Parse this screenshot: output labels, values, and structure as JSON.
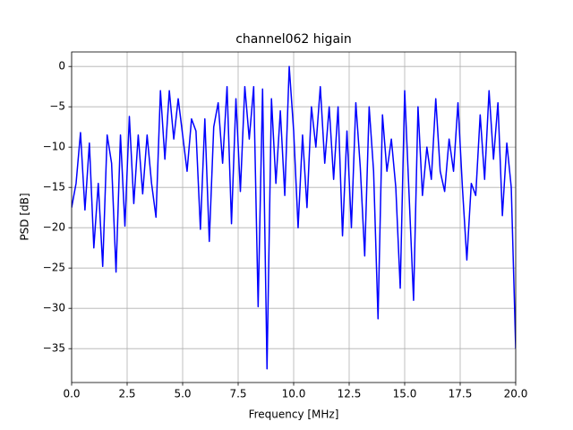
{
  "chart_data": {
    "type": "line",
    "title": "channel062 higain",
    "xlabel": "Frequency [MHz]",
    "ylabel": "PSD [dB]",
    "color": "blue",
    "grid": true,
    "xlim": [
      0,
      20
    ],
    "ylim": [
      -39.2,
      1.8
    ],
    "xticks": [
      {
        "value": 0,
        "label": "0.0"
      },
      2.5,
      {
        "value": 5,
        "label": "5.0"
      },
      7.5,
      {
        "value": 10,
        "label": "10.0"
      },
      12.5,
      {
        "value": 15,
        "label": "15.0"
      },
      17.5,
      {
        "value": 20,
        "label": "20.0"
      }
    ],
    "yticks": [
      0,
      {
        "value": -5,
        "label": "−5"
      },
      {
        "value": -10,
        "label": "−10"
      },
      {
        "value": -15,
        "label": "−15"
      },
      {
        "value": -20,
        "label": "−20"
      },
      {
        "value": -25,
        "label": "−25"
      },
      {
        "value": -30,
        "label": "−30"
      },
      {
        "value": -35,
        "label": "−35"
      }
    ],
    "x": [
      0.0,
      0.2,
      0.4,
      0.6,
      0.8,
      1.0,
      1.2,
      1.4,
      1.6,
      1.8,
      2.0,
      2.2,
      2.4,
      2.6,
      2.8,
      3.0,
      3.2,
      3.4,
      3.6,
      3.8,
      4.0,
      4.2,
      4.4,
      4.6,
      4.8,
      5.0,
      5.2,
      5.4,
      5.6,
      5.8,
      6.0,
      6.2,
      6.4,
      6.6,
      6.8,
      7.0,
      7.2,
      7.4,
      7.6,
      7.8,
      8.0,
      8.2,
      8.4,
      8.6,
      8.8,
      9.0,
      9.2,
      9.4,
      9.6,
      9.8,
      10.0,
      10.2,
      10.4,
      10.6,
      10.8,
      11.0,
      11.2,
      11.4,
      11.6,
      11.8,
      12.0,
      12.2,
      12.4,
      12.6,
      12.8,
      13.0,
      13.2,
      13.4,
      13.6,
      13.8,
      14.0,
      14.2,
      14.4,
      14.6,
      14.8,
      15.0,
      15.2,
      15.4,
      15.6,
      15.8,
      16.0,
      16.2,
      16.4,
      16.6,
      16.8,
      17.0,
      17.2,
      17.4,
      17.6,
      17.8,
      18.0,
      18.2,
      18.4,
      18.6,
      18.8,
      19.0,
      19.2,
      19.4,
      19.6,
      19.8,
      20.0
    ],
    "values": [
      -17.5,
      -14.5,
      -8.2,
      -17.8,
      -9.5,
      -22.5,
      -14.5,
      -24.8,
      -8.5,
      -12,
      -25.5,
      -8.5,
      -19.8,
      -6.2,
      -17,
      -8.5,
      -15.8,
      -8.5,
      -14.5,
      -18.7,
      -3,
      -11.5,
      -3,
      -9,
      -4,
      -8.5,
      -13,
      -6.5,
      -8,
      -20.2,
      -6.5,
      -21.7,
      -7.5,
      -4.5,
      -12,
      -2.5,
      -19.5,
      -4,
      -15.5,
      -2.5,
      -9,
      -2.5,
      -29.8,
      -2.8,
      -37.5,
      -4,
      -14.5,
      -5.5,
      -16,
      0,
      -8,
      -20,
      -8.5,
      -17.5,
      -5,
      -10,
      -2.5,
      -12,
      -5,
      -14,
      -5,
      -21,
      -8,
      -20,
      -4.5,
      -12.5,
      -23.5,
      -5,
      -13,
      -31.3,
      -6,
      -13,
      -9,
      -15,
      -27.5,
      -3,
      -16,
      -29,
      -5,
      -16,
      -10,
      -14,
      -4,
      -13,
      -15.5,
      -9,
      -13,
      -4.5,
      -15,
      -24,
      -14.5,
      -16,
      -6,
      -14,
      -3,
      -11.5,
      -4.5,
      -18.5,
      -9.5,
      -15,
      -35
    ]
  }
}
